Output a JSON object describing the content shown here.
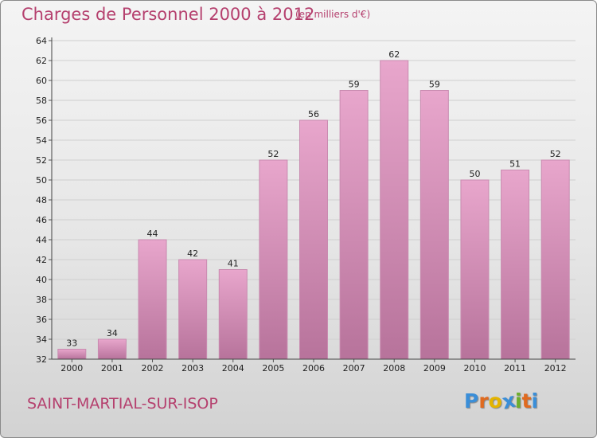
{
  "title": "Charges de Personnel 2000 à 2012",
  "subtitle": "(en milliers d'€)",
  "commune": "SAINT-MARTIAL-SUR-ISOP",
  "brand": "Proxiti",
  "colors": {
    "title": "#b5406e",
    "bar_top": "#e8a6cc",
    "bar_bottom": "#b7739b",
    "brand_letters": [
      "#3a8ed8",
      "#e06a1f",
      "#e4b400",
      "#3a8ed8",
      "#6cae2c",
      "#e06a1f",
      "#3a8ed8"
    ]
  },
  "chart_data": {
    "type": "bar",
    "categories": [
      "2000",
      "2001",
      "2002",
      "2003",
      "2004",
      "2005",
      "2006",
      "2007",
      "2008",
      "2009",
      "2010",
      "2011",
      "2012"
    ],
    "values": [
      33,
      34,
      44,
      42,
      41,
      52,
      56,
      59,
      62,
      59,
      50,
      51,
      52
    ],
    "data_labels": [
      "33",
      "34",
      "44",
      "42",
      "41",
      "52",
      "56",
      "59",
      "62",
      "59",
      "50",
      "51",
      "52"
    ],
    "yticks": [
      "32",
      "34",
      "36",
      "38",
      "40",
      "42",
      "44",
      "46",
      "48",
      "50",
      "52",
      "54",
      "56",
      "58",
      "60",
      "62",
      "64"
    ],
    "ylim": [
      32,
      64
    ],
    "grid": true,
    "xlabel": "",
    "ylabel": ""
  }
}
